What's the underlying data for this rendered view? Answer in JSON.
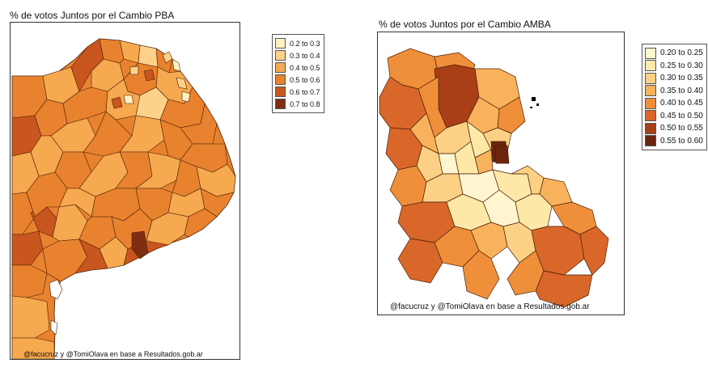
{
  "maps": [
    {
      "title": "% de votos Juntos por el Cambio PBA",
      "credit": "@facucruz y @TomiOlava en base a Resultados.gob.ar",
      "legend": [
        {
          "label": "0.2 to 0.3",
          "color": "#fff2c2"
        },
        {
          "label": "0.3 to 0.4",
          "color": "#fdd18a"
        },
        {
          "label": "0.4 to 0.5",
          "color": "#f6a94e"
        },
        {
          "label": "0.5 to 0.6",
          "color": "#e8822e"
        },
        {
          "label": "0.6 to 0.7",
          "color": "#c9561f"
        },
        {
          "label": "0.7 to 0.8",
          "color": "#7f2e12"
        }
      ]
    },
    {
      "title": "% de votos Juntos por el Cambio AMBA",
      "credit": "@facucruz y @TomiOlava en base a Resultados.gob.ar",
      "legend": [
        {
          "label": "0.20 to 0.25",
          "color": "#fff6cf"
        },
        {
          "label": "0.25 to 0.30",
          "color": "#fde8a8"
        },
        {
          "label": "0.30 to 0.35",
          "color": "#fcd185"
        },
        {
          "label": "0.35 to 0.40",
          "color": "#f9b25c"
        },
        {
          "label": "0.40 to 0.45",
          "color": "#ef8f3a"
        },
        {
          "label": "0.45 to 0.50",
          "color": "#d9672a"
        },
        {
          "label": "0.50 to 0.55",
          "color": "#a93e17"
        },
        {
          "label": "0.55 to 0.60",
          "color": "#6b250e"
        }
      ]
    }
  ]
}
